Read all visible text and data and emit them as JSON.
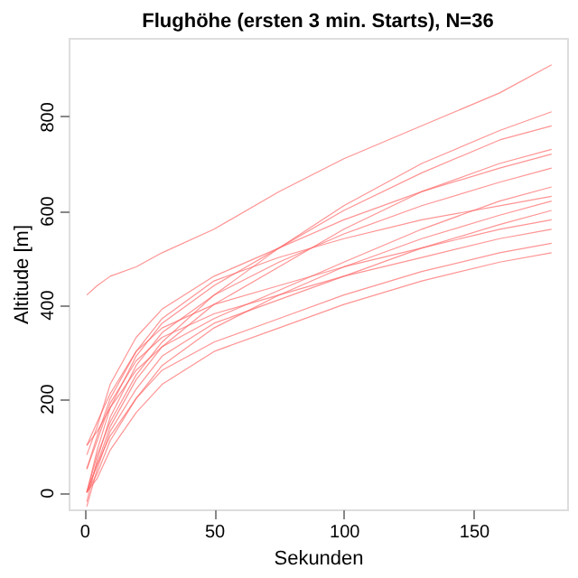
{
  "chart_data": {
    "type": "line",
    "title": "Flughöhe (ersten 3 min. Starts), N=36",
    "xlabel": "Sekunden",
    "ylabel": "Altitude [m]",
    "color": "#ff6666",
    "xlim": [
      -6,
      186
    ],
    "xticks": [
      0,
      50,
      100,
      150
    ],
    "ylim": [
      -36,
      967
    ],
    "yticks": [
      0,
      200,
      400,
      600,
      800
    ],
    "grid": false,
    "marker": "none",
    "line_style": "solid",
    "x": [
      1,
      5,
      10,
      20,
      30,
      50,
      75,
      100,
      130,
      160,
      180
    ],
    "series": [
      {
        "values": [
          420,
          440,
          460,
          480,
          510,
          560,
          640,
          710,
          780,
          850,
          910
        ]
      },
      {
        "values": [
          0,
          80,
          150,
          250,
          320,
          420,
          520,
          610,
          700,
          770,
          810
        ]
      },
      {
        "values": [
          0,
          60,
          140,
          240,
          310,
          400,
          480,
          560,
          640,
          700,
          730
        ]
      },
      {
        "values": [
          -20,
          70,
          160,
          270,
          340,
          420,
          490,
          550,
          610,
          660,
          690
        ]
      },
      {
        "values": [
          100,
          130,
          180,
          260,
          310,
          370,
          430,
          490,
          560,
          620,
          650
        ]
      },
      {
        "values": [
          0,
          40,
          110,
          200,
          270,
          350,
          420,
          480,
          540,
          590,
          620
        ]
      },
      {
        "values": [
          -30,
          50,
          130,
          220,
          290,
          360,
          410,
          460,
          520,
          570,
          600
        ]
      },
      {
        "values": [
          50,
          110,
          190,
          280,
          330,
          380,
          420,
          460,
          500,
          540,
          560
        ]
      },
      {
        "values": [
          0,
          60,
          120,
          200,
          260,
          320,
          370,
          420,
          470,
          510,
          530
        ]
      },
      {
        "values": [
          100,
          150,
          210,
          300,
          350,
          400,
          440,
          480,
          520,
          560,
          580
        ]
      },
      {
        "values": [
          0,
          30,
          90,
          170,
          230,
          300,
          350,
          400,
          450,
          490,
          510
        ]
      },
      {
        "values": [
          80,
          140,
          230,
          330,
          390,
          460,
          520,
          580,
          640,
          690,
          720
        ]
      },
      {
        "values": [
          0,
          90,
          180,
          290,
          360,
          440,
          520,
          600,
          680,
          750,
          780
        ]
      },
      {
        "values": [
          50,
          120,
          200,
          300,
          370,
          450,
          500,
          540,
          580,
          610,
          630
        ]
      }
    ]
  }
}
